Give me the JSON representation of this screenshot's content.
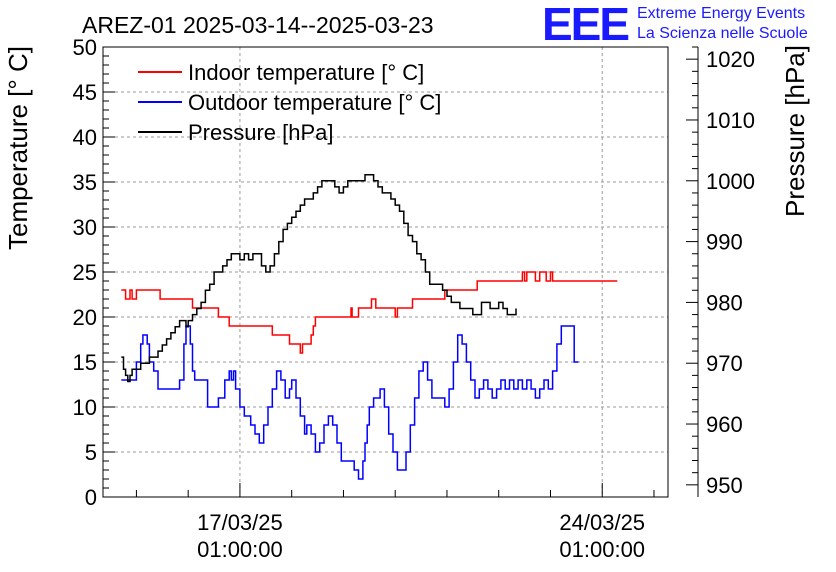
{
  "chart_data": {
    "type": "line",
    "title": "AREZ-01 2025-03-14--2025-03-23",
    "ylabel_left": "Temperature [° C]",
    "ylabel_right": "Pressure [hPa]",
    "ylim_left": [
      0,
      50
    ],
    "ylim_right": [
      948,
      1022
    ],
    "xlim_hours": [
      -63.5,
      198.5
    ],
    "y_left_ticks": [
      "0",
      "5",
      "10",
      "15",
      "20",
      "25",
      "30",
      "35",
      "40",
      "45",
      "50"
    ],
    "y_right_ticks": [
      "950",
      "960",
      "970",
      "980",
      "990",
      "1000",
      "1010",
      "1020"
    ],
    "x_ticks": [
      {
        "date": "17/03/25",
        "time": "01:00:00",
        "hour": 0
      },
      {
        "date": "24/03/25",
        "time": "01:00:00",
        "hour": 168
      }
    ],
    "grid": true,
    "legend_position": "top-left",
    "logo": {
      "mark": "EEE",
      "line1": "Extreme Energy Events",
      "line2": "La Scienza nelle Scuole"
    },
    "series": [
      {
        "name": "Indoor temperature [° C]",
        "color": "#ff0000",
        "axis": "left",
        "points": [
          [
            -55,
            23
          ],
          [
            -53,
            22
          ],
          [
            -52,
            22
          ],
          [
            -51,
            23
          ],
          [
            -50,
            22
          ],
          [
            -48,
            23
          ],
          [
            -46,
            23
          ],
          [
            -38,
            23
          ],
          [
            -37,
            22
          ],
          [
            -28,
            22
          ],
          [
            -23,
            22
          ],
          [
            -22,
            21
          ],
          [
            -14,
            21
          ],
          [
            -10,
            20
          ],
          [
            -8,
            20
          ],
          [
            -5,
            19
          ],
          [
            14,
            19
          ],
          [
            15,
            18
          ],
          [
            22,
            18
          ],
          [
            23,
            17
          ],
          [
            27,
            17
          ],
          [
            28,
            16
          ],
          [
            29,
            17
          ],
          [
            31,
            17
          ],
          [
            33,
            18
          ],
          [
            34,
            19
          ],
          [
            35,
            20
          ],
          [
            51,
            20
          ],
          [
            51.5,
            21
          ],
          [
            52,
            20
          ],
          [
            55,
            21
          ],
          [
            58,
            21
          ],
          [
            61,
            22
          ],
          [
            63,
            21
          ],
          [
            70,
            21
          ],
          [
            72,
            20
          ],
          [
            73,
            21
          ],
          [
            76,
            21
          ],
          [
            80,
            22
          ],
          [
            90,
            22
          ],
          [
            95,
            23
          ],
          [
            105,
            23
          ],
          [
            110,
            24
          ],
          [
            130,
            24
          ],
          [
            131,
            25
          ],
          [
            132,
            24
          ],
          [
            133,
            25
          ],
          [
            135,
            25
          ],
          [
            137,
            24
          ],
          [
            139,
            25
          ],
          [
            140,
            25
          ],
          [
            142,
            24
          ],
          [
            144,
            25
          ],
          [
            145,
            24
          ],
          [
            165,
            24
          ],
          [
            168,
            24
          ],
          [
            175,
            24
          ]
        ]
      },
      {
        "name": "Outdoor temperature [° C]",
        "color": "#0000ff",
        "axis": "left",
        "points": [
          [
            -55,
            13
          ],
          [
            -50,
            13
          ],
          [
            -48,
            15
          ],
          [
            -46,
            17
          ],
          [
            -45,
            18
          ],
          [
            -43,
            17
          ],
          [
            -42,
            15
          ],
          [
            -40,
            14
          ],
          [
            -38,
            12
          ],
          [
            -30,
            12
          ],
          [
            -28,
            13
          ],
          [
            -26,
            17
          ],
          [
            -25,
            19
          ],
          [
            -23,
            17
          ],
          [
            -22,
            14
          ],
          [
            -21,
            13
          ],
          [
            -18,
            13
          ],
          [
            -15,
            10
          ],
          [
            -10,
            11
          ],
          [
            -7,
            13
          ],
          [
            -5,
            14
          ],
          [
            -4,
            13
          ],
          [
            -3,
            14
          ],
          [
            -2,
            12
          ],
          [
            0,
            10
          ],
          [
            2,
            9
          ],
          [
            5,
            8
          ],
          [
            7,
            7
          ],
          [
            9,
            6
          ],
          [
            11,
            8
          ],
          [
            13,
            10
          ],
          [
            15,
            12
          ],
          [
            17,
            14
          ],
          [
            19,
            13
          ],
          [
            21,
            11
          ],
          [
            23,
            12
          ],
          [
            24,
            13
          ],
          [
            26,
            11
          ],
          [
            28,
            9
          ],
          [
            30,
            7
          ],
          [
            31,
            8
          ],
          [
            33,
            7
          ],
          [
            35,
            5
          ],
          [
            37,
            6
          ],
          [
            39,
            8
          ],
          [
            41,
            9
          ],
          [
            43,
            8
          ],
          [
            45,
            6
          ],
          [
            47,
            4
          ],
          [
            51,
            4
          ],
          [
            53,
            3
          ],
          [
            55,
            2
          ],
          [
            57,
            4
          ],
          [
            58,
            6
          ],
          [
            59,
            8
          ],
          [
            60,
            10
          ],
          [
            62,
            11
          ],
          [
            65,
            12
          ],
          [
            67,
            10
          ],
          [
            69,
            7
          ],
          [
            71,
            5
          ],
          [
            73,
            3
          ],
          [
            75,
            3
          ],
          [
            77,
            5
          ],
          [
            79,
            8
          ],
          [
            81,
            11
          ],
          [
            83,
            14
          ],
          [
            85,
            15
          ],
          [
            87,
            13
          ],
          [
            89,
            11
          ],
          [
            93,
            11
          ],
          [
            95,
            10
          ],
          [
            97,
            12
          ],
          [
            99,
            15
          ],
          [
            101,
            18
          ],
          [
            103,
            17
          ],
          [
            105,
            15
          ],
          [
            107,
            13
          ],
          [
            109,
            11
          ],
          [
            111,
            12
          ],
          [
            113,
            13
          ],
          [
            115,
            12
          ],
          [
            117,
            11
          ],
          [
            119,
            12
          ],
          [
            121,
            13
          ],
          [
            123,
            12
          ],
          [
            125,
            13
          ],
          [
            127,
            12
          ],
          [
            129,
            13
          ],
          [
            131,
            12
          ],
          [
            133,
            13
          ],
          [
            135,
            12
          ],
          [
            137,
            11
          ],
          [
            139,
            12
          ],
          [
            141,
            13
          ],
          [
            143,
            12
          ],
          [
            145,
            14
          ],
          [
            147,
            17
          ],
          [
            149,
            19
          ],
          [
            151,
            19
          ],
          [
            153,
            19
          ],
          [
            155,
            15
          ],
          [
            157,
            15
          ]
        ]
      },
      {
        "name": "Pressure [hPa]",
        "color": "#000000",
        "axis": "right",
        "points": [
          [
            -55,
            971
          ],
          [
            -54,
            969
          ],
          [
            -53,
            968
          ],
          [
            -52,
            967
          ],
          [
            -51,
            968
          ],
          [
            -50,
            969
          ],
          [
            -48,
            969
          ],
          [
            -46,
            970
          ],
          [
            -44,
            970
          ],
          [
            -42,
            971
          ],
          [
            -40,
            971
          ],
          [
            -38,
            972
          ],
          [
            -36,
            973
          ],
          [
            -34,
            974
          ],
          [
            -32,
            975
          ],
          [
            -30,
            976
          ],
          [
            -28,
            977
          ],
          [
            -26,
            977
          ],
          [
            -25,
            976
          ],
          [
            -24,
            977
          ],
          [
            -22,
            978
          ],
          [
            -20,
            979
          ],
          [
            -18,
            980
          ],
          [
            -16,
            982
          ],
          [
            -14,
            983
          ],
          [
            -12,
            985
          ],
          [
            -10,
            985
          ],
          [
            -8,
            986
          ],
          [
            -6,
            987
          ],
          [
            -4,
            988
          ],
          [
            -2,
            988
          ],
          [
            0,
            987
          ],
          [
            2,
            988
          ],
          [
            4,
            987
          ],
          [
            6,
            988
          ],
          [
            8,
            988
          ],
          [
            10,
            986
          ],
          [
            12,
            985
          ],
          [
            14,
            986
          ],
          [
            16,
            988
          ],
          [
            18,
            990
          ],
          [
            20,
            992
          ],
          [
            22,
            993
          ],
          [
            24,
            994
          ],
          [
            26,
            995
          ],
          [
            28,
            996
          ],
          [
            30,
            997
          ],
          [
            32,
            997
          ],
          [
            34,
            998
          ],
          [
            36,
            999
          ],
          [
            38,
            1000
          ],
          [
            40,
            1000
          ],
          [
            42,
            1000
          ],
          [
            44,
            999
          ],
          [
            46,
            998
          ],
          [
            48,
            999
          ],
          [
            50,
            1000
          ],
          [
            52,
            1000
          ],
          [
            54,
            1000
          ],
          [
            56,
            1000
          ],
          [
            58,
            1001
          ],
          [
            60,
            1001
          ],
          [
            62,
            1000
          ],
          [
            64,
            999
          ],
          [
            66,
            998
          ],
          [
            68,
            998
          ],
          [
            70,
            997
          ],
          [
            72,
            996
          ],
          [
            74,
            995
          ],
          [
            76,
            993
          ],
          [
            78,
            991
          ],
          [
            80,
            990
          ],
          [
            82,
            988
          ],
          [
            84,
            987
          ],
          [
            86,
            985
          ],
          [
            88,
            983
          ],
          [
            90,
            983
          ],
          [
            92,
            983
          ],
          [
            94,
            982
          ],
          [
            96,
            981
          ],
          [
            98,
            980
          ],
          [
            100,
            980
          ],
          [
            102,
            979
          ],
          [
            104,
            979
          ],
          [
            106,
            979
          ],
          [
            108,
            978
          ],
          [
            110,
            978
          ],
          [
            112,
            980
          ],
          [
            114,
            980
          ],
          [
            116,
            979
          ],
          [
            118,
            979
          ],
          [
            120,
            980
          ],
          [
            122,
            979
          ],
          [
            124,
            978
          ],
          [
            126,
            978
          ],
          [
            128,
            979
          ]
        ]
      }
    ]
  }
}
